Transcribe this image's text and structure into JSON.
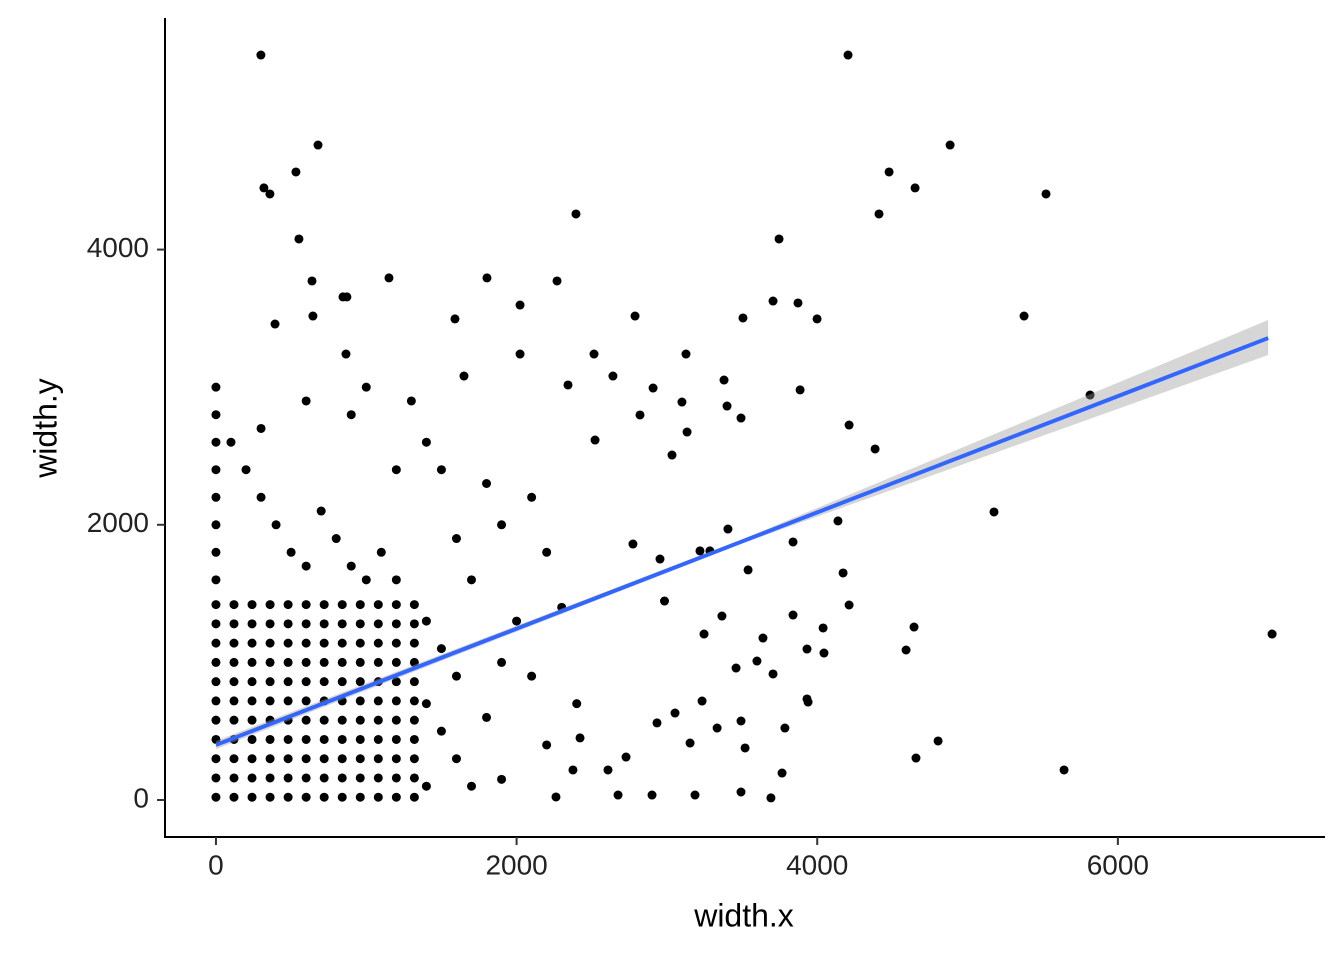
{
  "chart_data": {
    "type": "scatter",
    "x_label": "width.x",
    "y_label": "width.y",
    "xlim": [
      -339,
      7378
    ],
    "ylim": [
      -269,
      5683
    ],
    "xticks": [
      0,
      2000,
      4000,
      6000
    ],
    "yticks": [
      0,
      2000,
      4000
    ],
    "grid": false,
    "color": "#000000",
    "x": [
      0,
      120,
      240,
      360,
      480,
      600,
      720,
      840,
      960,
      1080,
      1200,
      1320,
      0,
      120,
      240,
      360,
      480,
      600,
      720,
      840,
      960,
      1080,
      1200,
      1320,
      0,
      120,
      240,
      360,
      480,
      600,
      720,
      840,
      960,
      1080,
      1200,
      1320,
      0,
      120,
      240,
      360,
      480,
      600,
      720,
      840,
      960,
      1080,
      1200,
      1320,
      0,
      120,
      240,
      360,
      480,
      600,
      720,
      840,
      960,
      1080,
      1200,
      1320,
      0,
      120,
      240,
      360,
      480,
      600,
      720,
      840,
      960,
      1080,
      1200,
      1320,
      0,
      120,
      240,
      360,
      480,
      600,
      720,
      840,
      960,
      1080,
      1200,
      1320,
      0,
      120,
      240,
      360,
      480,
      600,
      720,
      840,
      960,
      1080,
      1200,
      1320,
      0,
      120,
      240,
      360,
      480,
      600,
      720,
      840,
      960,
      1080,
      1200,
      1320,
      0,
      120,
      240,
      360,
      480,
      600,
      720,
      840,
      960,
      1080,
      1200,
      1320,
      0,
      120,
      240,
      360,
      480,
      600,
      720,
      840,
      960,
      1080,
      1200,
      1320,
      0,
      0,
      0,
      0,
      0,
      0,
      0,
      0,
      100,
      200,
      300,
      400,
      500,
      600,
      700,
      800,
      900,
      1000,
      1100,
      1200,
      1400,
      1500,
      1600,
      1400,
      1500,
      1600,
      1700,
      1800,
      1900,
      2000,
      1700,
      1900,
      2100,
      1800,
      1400,
      1200,
      900,
      600,
      300,
      1000,
      1300,
      1500,
      2200,
      2300,
      2100,
      2400,
      2200,
      1900,
      1400,
      1600,
      299,
      4205,
      679,
      4884,
      532,
      4478,
      319,
      359,
      4651,
      5522,
      2395,
      4411,
      552,
      3746,
      639,
      1151,
      1803,
      2269,
      845,
      871,
      2023,
      3706,
      3872,
      393,
      645,
      1590,
      2788,
      3506,
      3999,
      5376,
      865,
      2023,
      2515,
      3127,
      1650,
      2342,
      2641,
      3380,
      2908,
      3886,
      5815,
      3100,
      3400,
      3493,
      4212,
      2821,
      3134,
      4385,
      3034,
      2522,
      5176,
      4138,
      3406,
      3839,
      3220,
      3286,
      2774,
      2954,
      3540,
      4172,
      2984,
      4212,
      3839,
      3366,
      4039,
      4644,
      7026,
      3247,
      3639,
      3932,
      4045,
      4591,
      3599,
      3460,
      3706,
      3932,
      3234,
      3939,
      3054,
      2934,
      3493,
      3334,
      3785,
      3520,
      3154,
      4804,
      4657,
      5642,
      3766,
      3187,
      3493,
      3692,
      2901,
      2675,
      2262,
      2608,
      2728,
      2375,
      2422
    ],
    "values": [
      20,
      20,
      20,
      20,
      20,
      20,
      20,
      20,
      20,
      20,
      20,
      20,
      160,
      160,
      160,
      160,
      160,
      160,
      160,
      160,
      160,
      160,
      160,
      160,
      300,
      300,
      300,
      300,
      300,
      300,
      300,
      300,
      300,
      300,
      300,
      300,
      440,
      440,
      440,
      440,
      440,
      440,
      440,
      440,
      440,
      440,
      440,
      440,
      580,
      580,
      580,
      580,
      580,
      580,
      580,
      580,
      580,
      580,
      580,
      580,
      720,
      720,
      720,
      720,
      720,
      720,
      720,
      720,
      720,
      720,
      720,
      720,
      860,
      860,
      860,
      860,
      860,
      860,
      860,
      860,
      860,
      860,
      860,
      860,
      1000,
      1000,
      1000,
      1000,
      1000,
      1000,
      1000,
      1000,
      1000,
      1000,
      1000,
      1000,
      1140,
      1140,
      1140,
      1140,
      1140,
      1140,
      1140,
      1140,
      1140,
      1140,
      1140,
      1140,
      1280,
      1280,
      1280,
      1280,
      1280,
      1280,
      1280,
      1280,
      1280,
      1280,
      1280,
      1280,
      1420,
      1420,
      1420,
      1420,
      1420,
      1420,
      1420,
      1420,
      1420,
      1420,
      1420,
      1420,
      1600,
      1800,
      2000,
      2200,
      2400,
      2600,
      2800,
      3000,
      2600,
      2400,
      2200,
      2000,
      1800,
      1700,
      2100,
      1900,
      1700,
      1600,
      1800,
      1600,
      1300,
      1100,
      900,
      700,
      500,
      300,
      100,
      600,
      1000,
      1300,
      1600,
      2000,
      2200,
      2300,
      2600,
      2400,
      2800,
      2900,
      2700,
      3000,
      2900,
      2400,
      1800,
      1400,
      900,
      700,
      400,
      150,
      100,
      1900,
      5414,
      5414,
      4760,
      4760,
      4564,
      4564,
      4448,
      4404,
      4448,
      4404,
      4259,
      4259,
      4077,
      4077,
      3772,
      3794,
      3794,
      3772,
      3656,
      3656,
      3597,
      3626,
      3612,
      3459,
      3517,
      3496,
      3517,
      3503,
      3496,
      3517,
      3241,
      3241,
      3241,
      3241,
      3081,
      3016,
      3081,
      3052,
      2994,
      2980,
      2943,
      2892,
      2863,
      2776,
      2725,
      2798,
      2674,
      2551,
      2507,
      2616,
      2093,
      2028,
      1969,
      1875,
      1810,
      1810,
      1860,
      1751,
      1672,
      1650,
      1446,
      1417,
      1344,
      1337,
      1250,
      1257,
      1206,
      1206,
      1177,
      1097,
      1068,
      1090,
      1010,
      959,
      916,
      734,
      719,
      712,
      632,
      560,
      574,
      523,
      523,
      378,
      414,
      429,
      305,
      218,
      196,
      36,
      58,
      15,
      36,
      36,
      22,
      218,
      312,
      218,
      451
    ],
    "fit": {
      "color": "#3366ff",
      "band_color": "#999999",
      "x": [
        0,
        3500,
        7000
      ],
      "values": [
        400,
        1879,
        3357
      ],
      "lower": [
        370,
        1864,
        3234
      ],
      "upper": [
        430,
        1894,
        3488
      ]
    }
  }
}
